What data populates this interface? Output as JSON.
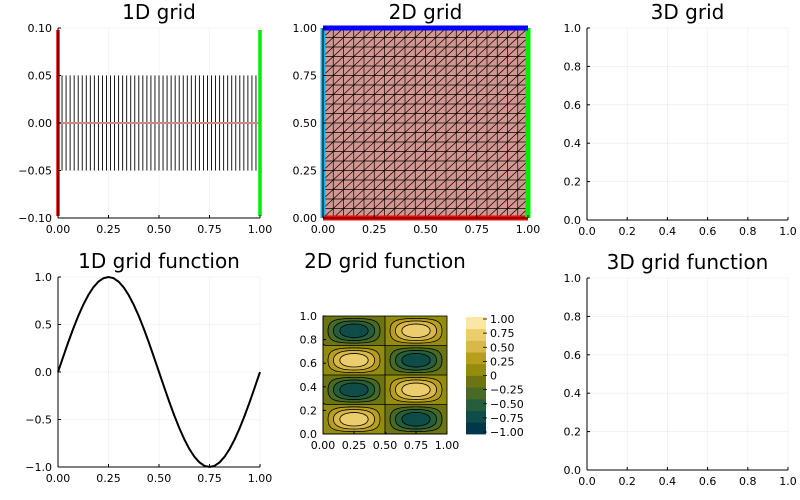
{
  "chart_data": [
    {
      "type": "line",
      "title": "1D grid",
      "xlim": [
        0,
        1
      ],
      "ylim": [
        -0.1,
        0.1
      ],
      "xticks": [
        "0.00",
        "0.25",
        "0.50",
        "0.75",
        "1.00"
      ],
      "yticks": [
        "−0.10",
        "−0.05",
        "0.00",
        "0.05",
        "0.10"
      ],
      "n_nodes": 51,
      "node_marker_halfheight": 0.05,
      "boundaries": [
        {
          "x": 0,
          "color": "#ff0000"
        },
        {
          "x": 1,
          "color": "#00ee00"
        }
      ],
      "cell_line_color": "#cc8a83",
      "grid": true
    },
    {
      "type": "mesh",
      "title": "2D grid",
      "xlim": [
        0,
        1
      ],
      "ylim": [
        0,
        1
      ],
      "xticks": [
        "0.00",
        "0.25",
        "0.50",
        "0.75",
        "1.00"
      ],
      "yticks": [
        "0.00",
        "0.25",
        "0.50",
        "0.75",
        "1.00"
      ],
      "n_cells_per_side": 20,
      "fill_color": "#d49690",
      "boundaries": [
        {
          "side": "left",
          "color": "#1ab0e8"
        },
        {
          "side": "bottom",
          "color": "#ff0000"
        },
        {
          "side": "right",
          "color": "#00ee00"
        },
        {
          "side": "top",
          "color": "#0000ff"
        }
      ],
      "grid": true
    },
    {
      "type": "line",
      "title": "3D grid",
      "xlim": [
        0,
        1
      ],
      "ylim": [
        0,
        1
      ],
      "xticks": [
        "0.0",
        "0.2",
        "0.4",
        "0.6",
        "0.8",
        "1.0"
      ],
      "yticks": [
        "0.0",
        "0.2",
        "0.4",
        "0.6",
        "0.8",
        "1.0"
      ],
      "series": [],
      "grid": true
    },
    {
      "type": "line",
      "title": "1D grid function",
      "xlim": [
        0,
        1
      ],
      "ylim": [
        -1,
        1
      ],
      "xticks": [
        "0.00",
        "0.25",
        "0.50",
        "0.75",
        "1.00"
      ],
      "yticks": [
        "−1.0",
        "−0.5",
        "0.0",
        "0.5",
        "1.0"
      ],
      "series": [
        {
          "color": "#000000",
          "x": [
            0,
            0.025,
            0.05,
            0.075,
            0.1,
            0.125,
            0.15,
            0.175,
            0.2,
            0.225,
            0.25,
            0.275,
            0.3,
            0.325,
            0.35,
            0.375,
            0.4,
            0.425,
            0.45,
            0.475,
            0.5,
            0.525,
            0.55,
            0.575,
            0.6,
            0.625,
            0.65,
            0.675,
            0.7,
            0.725,
            0.75,
            0.775,
            0.8,
            0.825,
            0.85,
            0.875,
            0.9,
            0.925,
            0.95,
            0.975,
            1
          ],
          "y": [
            0,
            0.156,
            0.309,
            0.454,
            0.588,
            0.707,
            0.809,
            0.891,
            0.951,
            0.988,
            1,
            0.988,
            0.951,
            0.891,
            0.809,
            0.707,
            0.588,
            0.454,
            0.309,
            0.156,
            0,
            -0.156,
            -0.309,
            -0.454,
            -0.588,
            -0.707,
            -0.809,
            -0.891,
            -0.951,
            -0.988,
            -1,
            -0.988,
            -0.951,
            -0.891,
            -0.809,
            -0.707,
            -0.588,
            -0.454,
            -0.309,
            -0.156,
            0
          ]
        }
      ],
      "grid": true
    },
    {
      "type": "heatmap",
      "title": "2D grid function",
      "xlim": [
        0,
        1
      ],
      "ylim": [
        0,
        1
      ],
      "xticks": [
        "0.00",
        "0.25",
        "0.50",
        "0.75",
        "1.00"
      ],
      "yticks": [
        "0.0",
        "0.2",
        "0.4",
        "0.6",
        "0.8",
        "1.0"
      ],
      "field": "sin(2πx)·sin(4πy)",
      "levels": [
        -1,
        -0.75,
        -0.5,
        -0.25,
        0,
        0.25,
        0.5,
        0.75,
        1
      ],
      "colorbar_ticks": [
        "1.00",
        "0.75",
        "0.50",
        "0.25",
        "0",
        "−0.25",
        "−0.50",
        "−0.75",
        "−1.00"
      ],
      "colorbar_colors": [
        "#00384a",
        "#0f4d48",
        "#265e3c",
        "#486a24",
        "#6d7512",
        "#938c0c",
        "#b89e1e",
        "#d8b84a",
        "#eccd6e",
        "#fbe7a5"
      ],
      "grid": false
    },
    {
      "type": "line",
      "title": "3D grid function",
      "xlim": [
        0,
        1
      ],
      "ylim": [
        0,
        1
      ],
      "xticks": [
        "0.0",
        "0.2",
        "0.4",
        "0.6",
        "0.8",
        "1.0"
      ],
      "yticks": [
        "0.0",
        "0.2",
        "0.4",
        "0.6",
        "0.8",
        "1.0"
      ],
      "series": [],
      "grid": true
    }
  ]
}
